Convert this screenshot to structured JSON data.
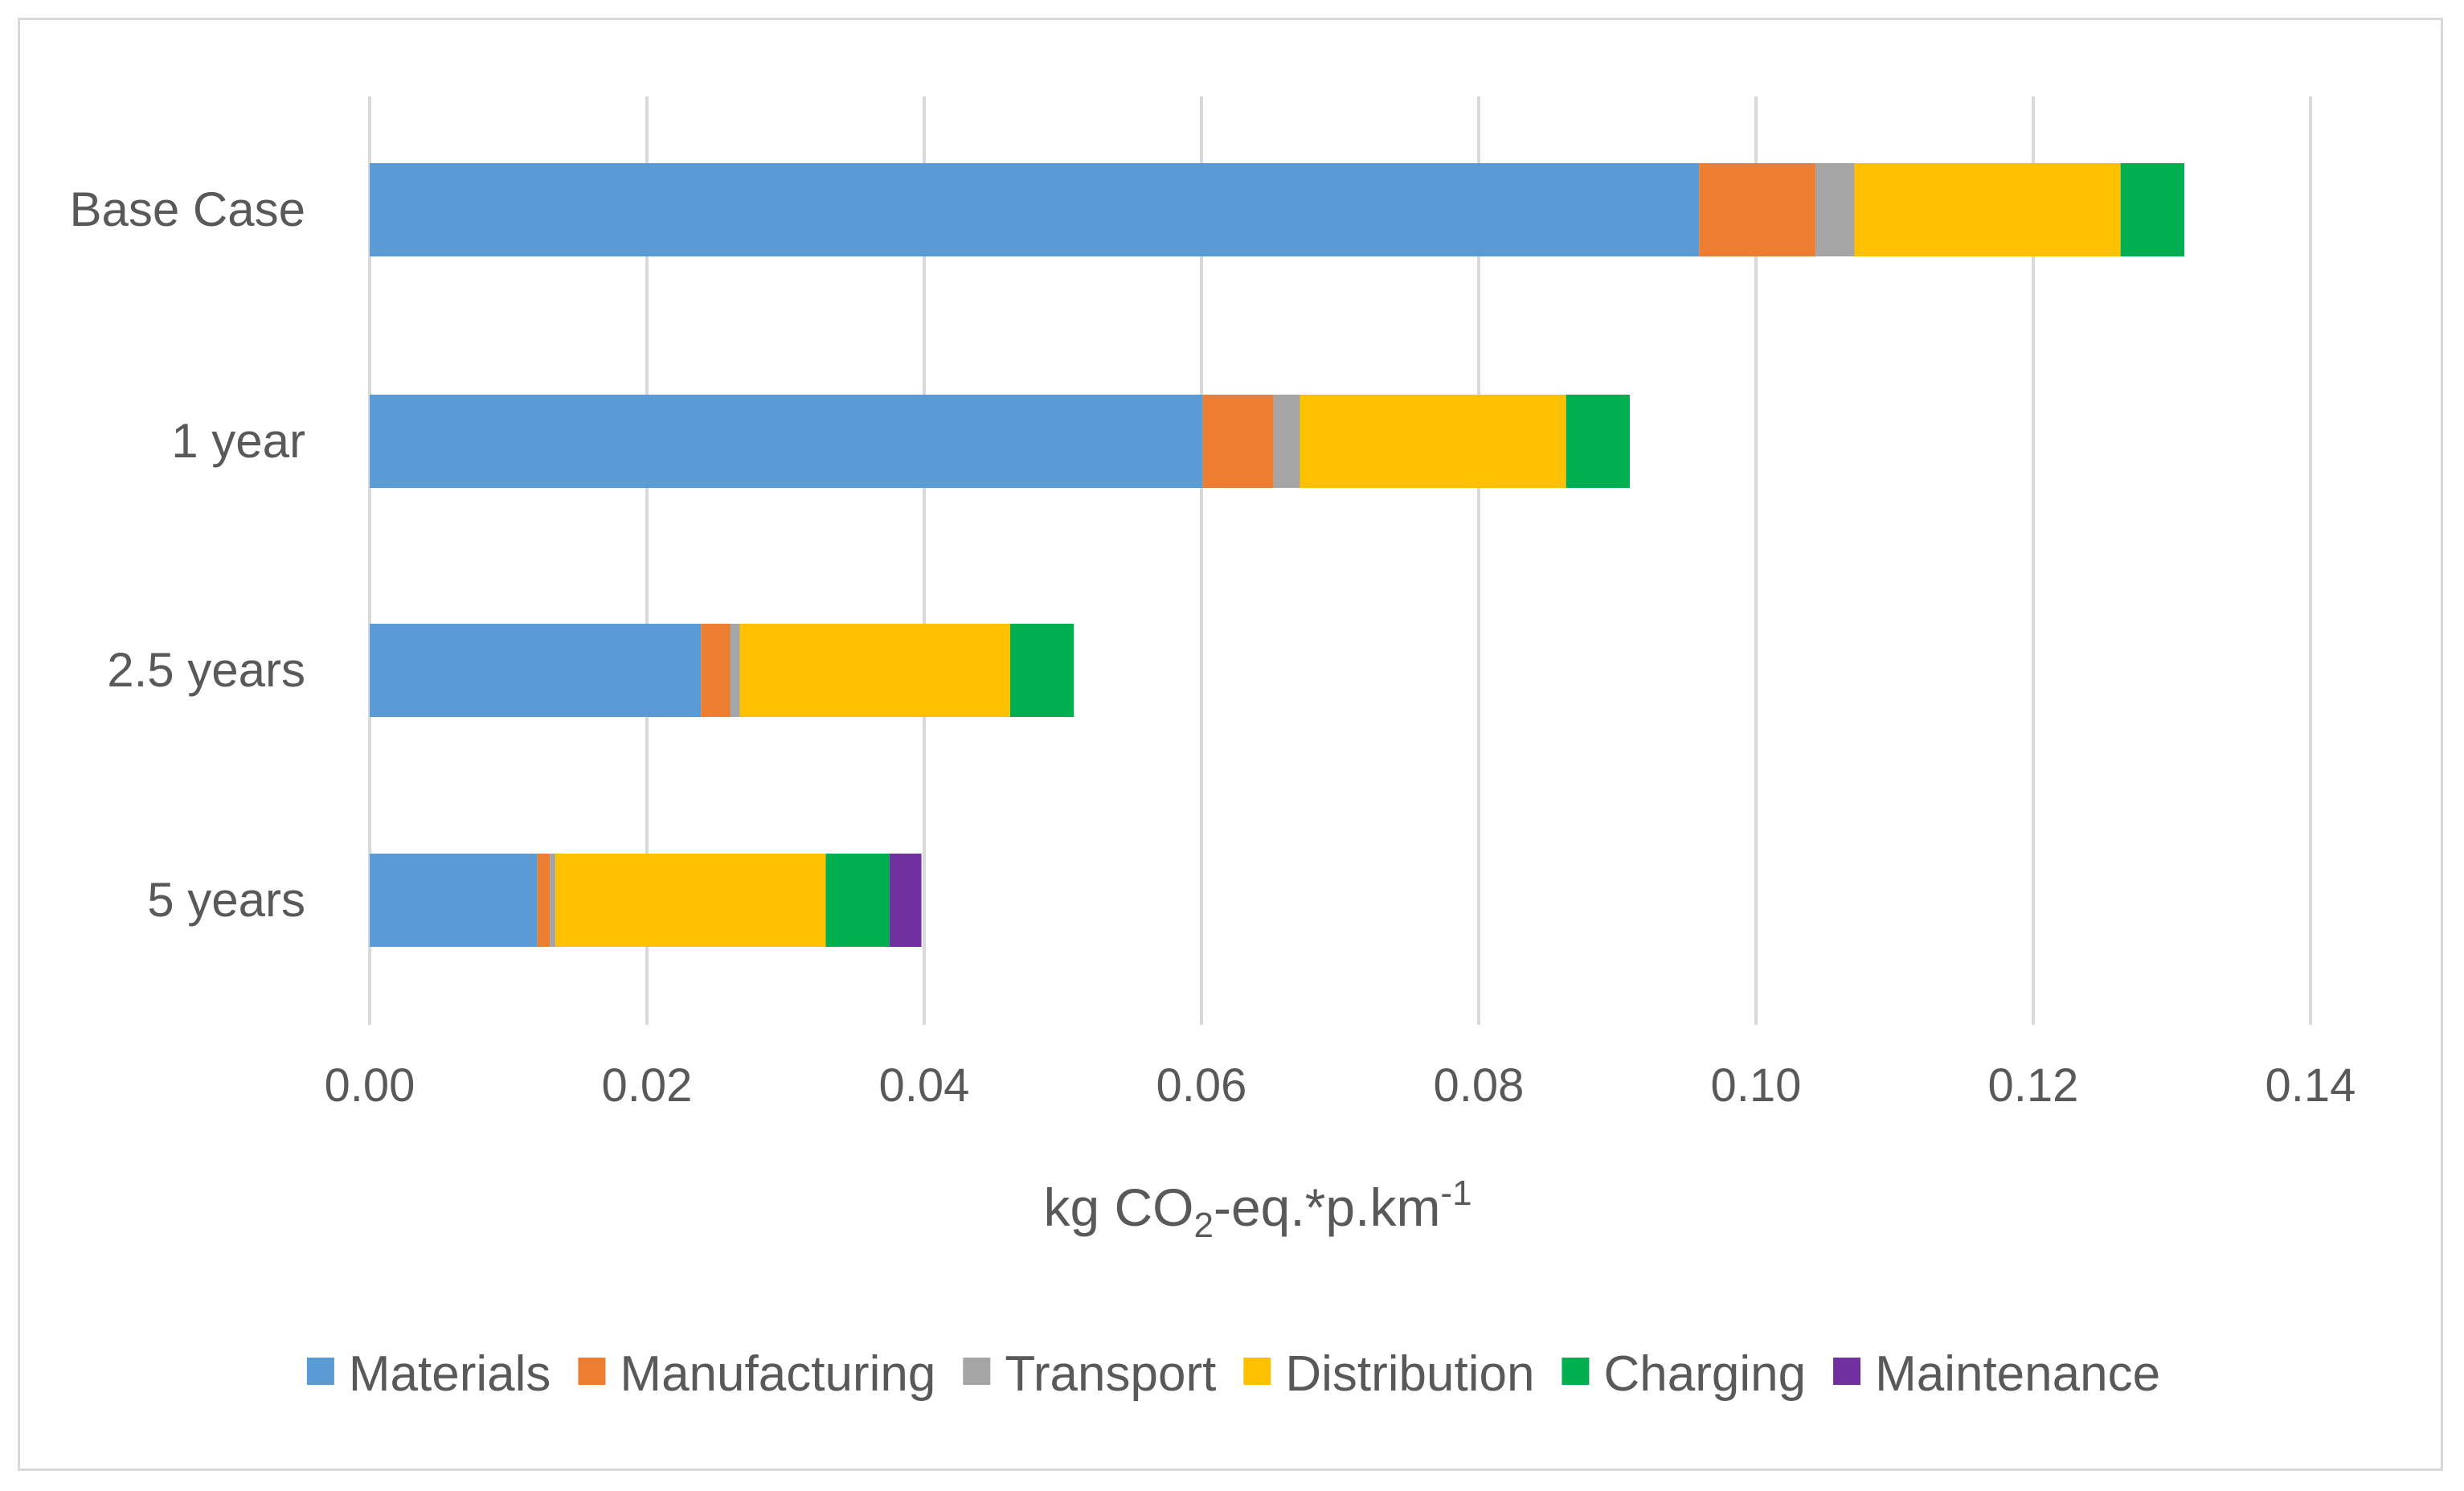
{
  "chart_data": {
    "type": "bar",
    "orientation": "horizontal",
    "stacked": true,
    "title": "",
    "categories": [
      "Base Case",
      "1 year",
      "2.5 years",
      "5 years"
    ],
    "series": [
      {
        "name": "Materials",
        "color": "#5b9bd5",
        "values": [
          0.0959,
          0.0601,
          0.0239,
          0.0121
        ]
      },
      {
        "name": "Manufacturing",
        "color": "#ed7d31",
        "values": [
          0.0084,
          0.0051,
          0.0021,
          0.0009
        ]
      },
      {
        "name": "Transport",
        "color": "#a5a5a5",
        "values": [
          0.0028,
          0.0019,
          0.0007,
          0.0004
        ]
      },
      {
        "name": "Distribution",
        "color": "#ffc000",
        "values": [
          0.0192,
          0.0192,
          0.0195,
          0.0195
        ]
      },
      {
        "name": "Charging",
        "color": "#00b050",
        "values": [
          0.0046,
          0.0046,
          0.0046,
          0.0046
        ]
      },
      {
        "name": "Maintenance",
        "color": "#7030a0",
        "values": [
          0,
          0,
          0,
          0.0023
        ]
      }
    ],
    "xlim": [
      0,
      0.14
    ],
    "xticks": [
      "0.00",
      "0.02",
      "0.04",
      "0.06",
      "0.08",
      "0.10",
      "0.12",
      "0.14"
    ],
    "xlabel": {
      "prefix": "kg CO",
      "subscript": "2",
      "middle": "-eq.*p.km",
      "superscript": "-1"
    },
    "ylabel": "",
    "grid": "vertical",
    "legend": "bottom"
  }
}
